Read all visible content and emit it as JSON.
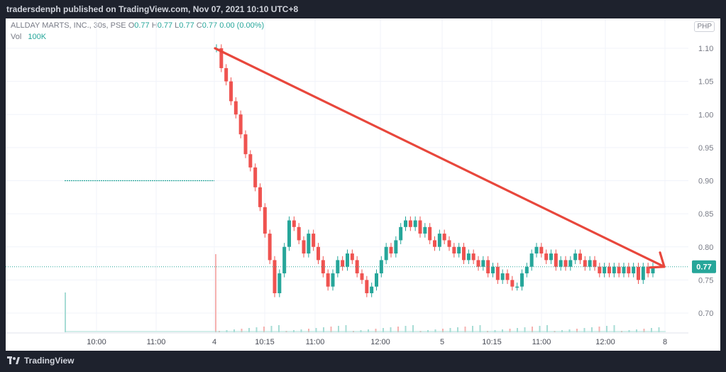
{
  "header": {
    "published_text": "tradersdenph published on TradingView.com, Nov 07, 2021 10:10 UTC+8"
  },
  "legend": {
    "symbol_line": "ALLDAY MARTS, INC., 30s, PSE",
    "open_label": "O",
    "open_value": "0.77",
    "high_label": "H",
    "high_value": "0.77",
    "low_label": "L",
    "low_value": "0.77",
    "close_label": "C",
    "close_value": "0.77",
    "change_value": "0.00 (0.00%)",
    "vol_label": "Vol",
    "vol_value": "100K"
  },
  "currency": "PHP",
  "footer": {
    "brand": "TradingView"
  },
  "colors": {
    "up": "#26a69a",
    "down": "#ef5350",
    "arrow": "#e8473c",
    "price_badge": "#26a69a",
    "grid": "#f0f3fa",
    "axis_text": "#787b86"
  },
  "chart_data": {
    "type": "candlestick",
    "title": "ALLDAY MARTS, INC., 30s, PSE",
    "y_range": [
      0.665,
      1.125
    ],
    "y_ticks": [
      "1.10",
      "1.05",
      "1.00",
      "0.95",
      "0.90",
      "0.85",
      "0.80",
      "0.75",
      "0.70"
    ],
    "x_ticks": [
      "10:00",
      "11:00",
      "4",
      "10:15",
      "11:00",
      "12:00",
      "5",
      "10:15",
      "11:00",
      "12:00",
      "8"
    ],
    "last_price": "0.77",
    "previous_session_level": 0.9,
    "trend_arrow": {
      "from_price": 1.1,
      "to_price": 0.77,
      "direction": "down"
    },
    "price_path": [
      1.1,
      1.07,
      1.05,
      1.02,
      1.0,
      0.97,
      0.94,
      0.92,
      0.89,
      0.86,
      0.82,
      0.78,
      0.73,
      0.76,
      0.8,
      0.84,
      0.83,
      0.81,
      0.79,
      0.82,
      0.8,
      0.78,
      0.76,
      0.74,
      0.76,
      0.78,
      0.77,
      0.79,
      0.78,
      0.76,
      0.75,
      0.73,
      0.74,
      0.76,
      0.78,
      0.8,
      0.79,
      0.81,
      0.83,
      0.84,
      0.83,
      0.84,
      0.82,
      0.83,
      0.81,
      0.8,
      0.82,
      0.81,
      0.8,
      0.79,
      0.8,
      0.78,
      0.79,
      0.78,
      0.77,
      0.78,
      0.76,
      0.77,
      0.75,
      0.76,
      0.75,
      0.74,
      0.74,
      0.76,
      0.77,
      0.79,
      0.8,
      0.79,
      0.78,
      0.79,
      0.77,
      0.78,
      0.77,
      0.78,
      0.79,
      0.78,
      0.77,
      0.78,
      0.77,
      0.76,
      0.77,
      0.76,
      0.77,
      0.76,
      0.77,
      0.76,
      0.77,
      0.75,
      0.77,
      0.76,
      0.77
    ]
  }
}
